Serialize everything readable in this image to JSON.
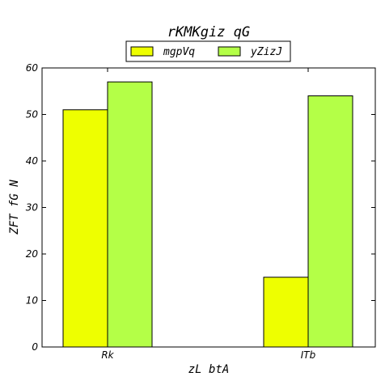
{
  "chart_data": {
    "type": "bar",
    "title": "rKMKgiz qG",
    "xlabel": "zL btA",
    "ylabel": "ZFT fG N",
    "categories": [
      "Rk",
      "ITb"
    ],
    "series": [
      {
        "name": "mgpVq",
        "values": [
          51,
          15
        ],
        "color": "#eeff00"
      },
      {
        "name": "yZizJ",
        "values": [
          57,
          54
        ],
        "color": "#b4ff47"
      }
    ],
    "ylim": [
      0,
      60
    ],
    "yticks": [
      0,
      10,
      20,
      30,
      40,
      50,
      60
    ],
    "grid": false,
    "legend_position": "top-center"
  }
}
